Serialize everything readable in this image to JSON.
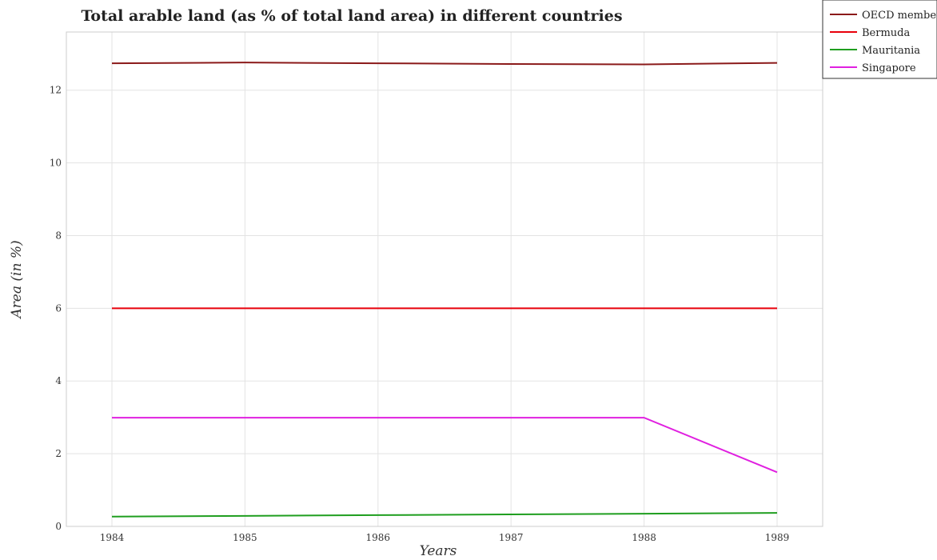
{
  "chart_data": {
    "type": "line",
    "title": "Total arable land (as % of total land area) in different countries",
    "xlabel": "Years",
    "ylabel": "Area (in %)",
    "categories": [
      "1984",
      "1985",
      "1986",
      "1987",
      "1988",
      "1989"
    ],
    "ylim": [
      0,
      13.6
    ],
    "yticks": [
      0,
      2,
      4,
      6,
      8,
      10,
      12
    ],
    "grid": true,
    "legend_position": "top-right",
    "series": [
      {
        "name": "OECD members",
        "color": "#8b1a1a",
        "values": [
          12.74,
          12.76,
          12.74,
          12.72,
          12.71,
          12.75
        ]
      },
      {
        "name": "Bermuda",
        "color": "#e8000b",
        "values": [
          6.0,
          6.0,
          6.0,
          6.0,
          6.0,
          6.0
        ]
      },
      {
        "name": "Mauritania",
        "color": "#1f9e1f",
        "values": [
          0.27,
          0.29,
          0.31,
          0.33,
          0.35,
          0.37
        ]
      },
      {
        "name": "Singapore",
        "color": "#e020e0",
        "values": [
          2.99,
          2.99,
          2.99,
          2.99,
          2.99,
          1.49
        ]
      }
    ]
  }
}
